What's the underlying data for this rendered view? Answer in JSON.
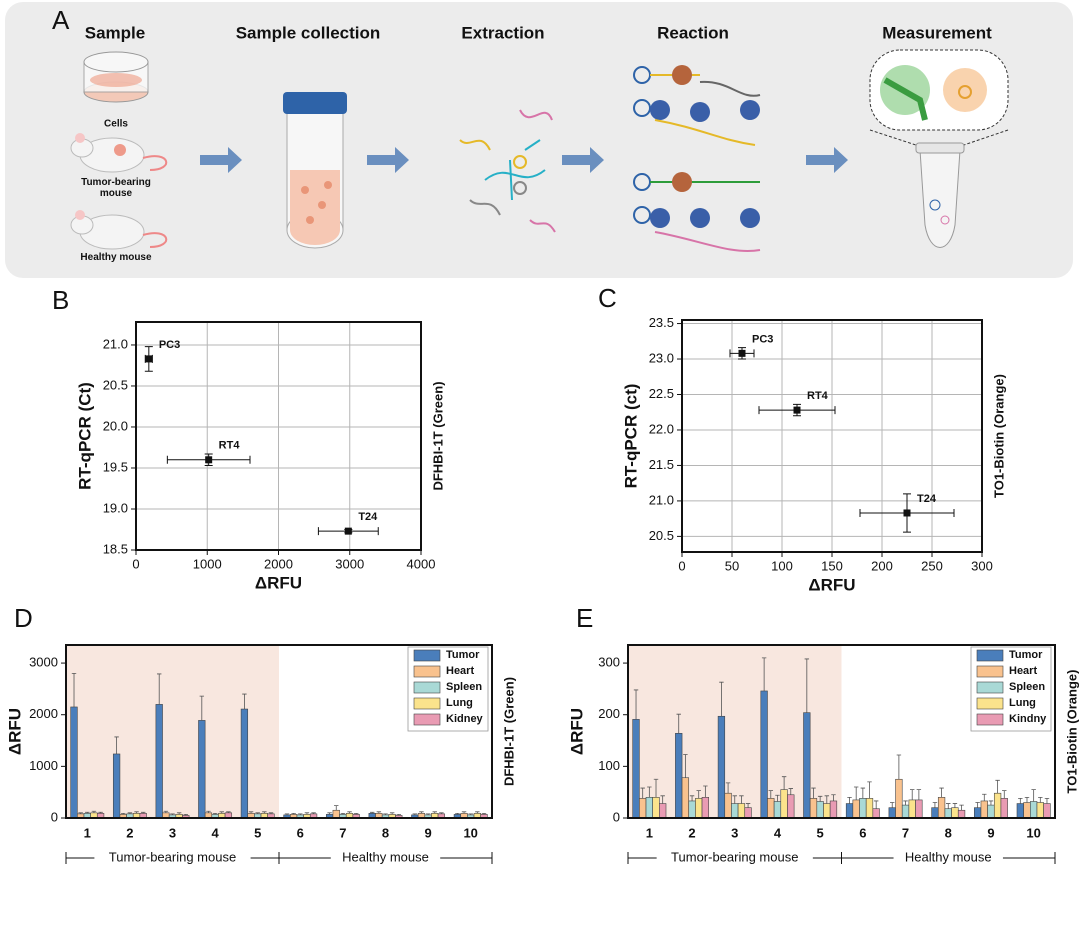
{
  "panel_a": {
    "label": "A",
    "steps": [
      "Sample",
      "Sample collection",
      "Extraction",
      "Reaction",
      "Measurement"
    ],
    "samples": [
      "Cells",
      "Tumor-bearing mouse",
      "Healthy mouse"
    ]
  },
  "chart_data": [
    {
      "type": "scatter",
      "label": "B",
      "xlabel": "ΔRFU",
      "ylabel": "RT-qPCR (Ct)",
      "right_label": "DFHBI-1T (Green)",
      "point_labels": [
        "PC3",
        "RT4",
        "T24"
      ],
      "x": [
        180,
        1020,
        2980
      ],
      "values": [
        20.83,
        19.6,
        18.73
      ],
      "xerr": [
        50,
        580,
        420
      ],
      "yerr": [
        0.15,
        0.07,
        0.02
      ],
      "xlim": [
        0,
        4000
      ],
      "xticks": [
        0,
        1000,
        2000,
        3000,
        4000
      ],
      "ylim": [
        18.5,
        21.28
      ],
      "yticks": [
        18.5,
        {
          "value": 19,
          "label": "19.0"
        },
        19.5,
        {
          "value": 20,
          "label": "20.0"
        },
        20.5,
        {
          "value": 21,
          "label": "21.0"
        }
      ],
      "grid": true,
      "color": "#111111"
    },
    {
      "type": "scatter",
      "label": "C",
      "xlabel": "ΔRFU",
      "ylabel": "RT-qPCR (ct)",
      "right_label": "TO1-Biotin (Orange)",
      "point_labels": [
        "PC3",
        "RT4",
        "T24"
      ],
      "x": [
        60,
        115,
        225
      ],
      "values": [
        23.08,
        22.28,
        20.83
      ],
      "xerr": [
        12,
        38,
        47
      ],
      "yerr": [
        0.08,
        0.08,
        0.27
      ],
      "xlim": [
        0,
        300
      ],
      "xticks": [
        0,
        50,
        100,
        150,
        200,
        250,
        300
      ],
      "ylim": [
        20.28,
        23.55
      ],
      "yticks": [
        20.5,
        {
          "value": 21,
          "label": "21.0"
        },
        21.5,
        {
          "value": 22,
          "label": "22.0"
        },
        22.5,
        {
          "value": 23,
          "label": "23.0"
        },
        23.5
      ],
      "grid": true,
      "color": "#111111"
    },
    {
      "type": "bar",
      "label": "D",
      "ylabel": "ΔRFU",
      "right_label": "DFHBI-1T (Green)",
      "categories": [
        "1",
        "2",
        "3",
        "4",
        "5",
        "6",
        "7",
        "8",
        "9",
        "10"
      ],
      "groups": [
        "Tumor-bearing mouse",
        "Healthy mouse"
      ],
      "ylim": [
        0,
        3350
      ],
      "yticks": [
        0,
        1000,
        2000,
        3000
      ],
      "series": [
        {
          "name": "Tumor",
          "color": "#4a7ebb",
          "values": [
            2150,
            1240,
            2200,
            1890,
            2110,
            60,
            70,
            90,
            60,
            70
          ],
          "errors": [
            650,
            330,
            590,
            470,
            290,
            20,
            30,
            20,
            20,
            20
          ]
        },
        {
          "name": "Heart",
          "color": "#f9c28e",
          "values": [
            80,
            70,
            100,
            100,
            90,
            70,
            150,
            90,
            90,
            90
          ],
          "errors": [
            20,
            20,
            30,
            30,
            30,
            20,
            90,
            30,
            30,
            30
          ]
        },
        {
          "name": "Spleen",
          "color": "#a9d9d6",
          "values": [
            90,
            80,
            60,
            70,
            80,
            60,
            70,
            60,
            60,
            60
          ],
          "errors": [
            20,
            20,
            20,
            20,
            20,
            20,
            20,
            20,
            20,
            20
          ]
        },
        {
          "name": "Lung",
          "color": "#fbe38c",
          "values": [
            100,
            90,
            70,
            90,
            90,
            70,
            90,
            70,
            90,
            90
          ],
          "errors": [
            30,
            30,
            30,
            30,
            30,
            30,
            30,
            30,
            30,
            30
          ]
        },
        {
          "name": "Kidney",
          "color": "#e99bb3",
          "values": [
            90,
            90,
            50,
            100,
            80,
            80,
            70,
            50,
            80,
            70
          ],
          "errors": [
            20,
            20,
            20,
            20,
            20,
            20,
            20,
            20,
            20,
            20
          ]
        }
      ]
    },
    {
      "type": "bar",
      "label": "E",
      "ylabel": "ΔRFU",
      "right_label": "TO1-Biotin (Orange)",
      "categories": [
        "1",
        "2",
        "3",
        "4",
        "5",
        "6",
        "7",
        "8",
        "9",
        "10"
      ],
      "groups": [
        "Tumor-bearing mouse",
        "Healthy mouse"
      ],
      "ylim": [
        0,
        335
      ],
      "yticks": [
        0,
        100,
        200,
        300
      ],
      "series": [
        {
          "name": "Tumor",
          "color": "#4a7ebb",
          "values": [
            191,
            164,
            197,
            246,
            204,
            28,
            20,
            20,
            20,
            28
          ],
          "errors": [
            57,
            37,
            66,
            64,
            104,
            12,
            10,
            10,
            10,
            10
          ]
        },
        {
          "name": "Heart",
          "color": "#f9c28e",
          "values": [
            38,
            78,
            48,
            38,
            38,
            35,
            75,
            40,
            33,
            30
          ],
          "errors": [
            20,
            45,
            20,
            15,
            20,
            25,
            47,
            18,
            13,
            10
          ]
        },
        {
          "name": "Spleen",
          "color": "#a9d9d6",
          "values": [
            40,
            33,
            28,
            32,
            32,
            38,
            25,
            18,
            25,
            32
          ],
          "errors": [
            20,
            10,
            15,
            12,
            10,
            20,
            8,
            10,
            8,
            23
          ]
        },
        {
          "name": "Lung",
          "color": "#fbe38c",
          "values": [
            40,
            38,
            28,
            55,
            28,
            38,
            35,
            20,
            48,
            30
          ],
          "errors": [
            35,
            15,
            15,
            25,
            15,
            32,
            20,
            8,
            25,
            10
          ]
        },
        {
          "name": "Kindny",
          "color": "#e99bb3",
          "values": [
            28,
            40,
            20,
            45,
            33,
            18,
            35,
            15,
            38,
            28
          ],
          "errors": [
            15,
            22,
            8,
            12,
            12,
            15,
            20,
            10,
            15,
            10
          ]
        }
      ]
    }
  ]
}
